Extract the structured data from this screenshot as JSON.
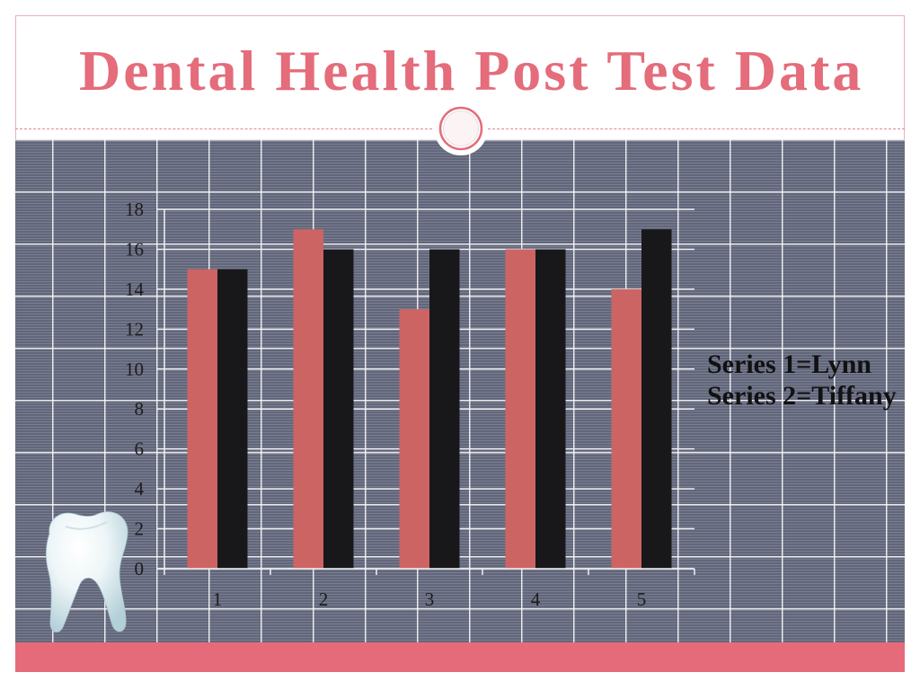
{
  "slide": {
    "title": "Dental Health Post Test Data"
  },
  "theme": {
    "title_color": "#e46c7b",
    "footer_color": "#e56b7b",
    "grid_background": "#6a6e80"
  },
  "decor": {
    "ornament": "circle-ornament-icon",
    "tooth": "tooth-icon"
  },
  "chart_data": {
    "type": "bar",
    "categories": [
      "1",
      "2",
      "3",
      "4",
      "5"
    ],
    "series": [
      {
        "values": [
          15,
          17,
          13,
          16,
          14
        ],
        "color": "#cd6464"
      },
      {
        "values": [
          15,
          16,
          16,
          16,
          17
        ],
        "color": "#18181b"
      }
    ],
    "yticks": [
      0,
      2,
      4,
      6,
      8,
      10,
      12,
      14,
      16,
      18
    ],
    "ylim": [
      0,
      18
    ],
    "grid": true,
    "legend": "none",
    "annotations": [
      "Series 1=Lynn",
      "Series 2=Tiffany"
    ]
  }
}
